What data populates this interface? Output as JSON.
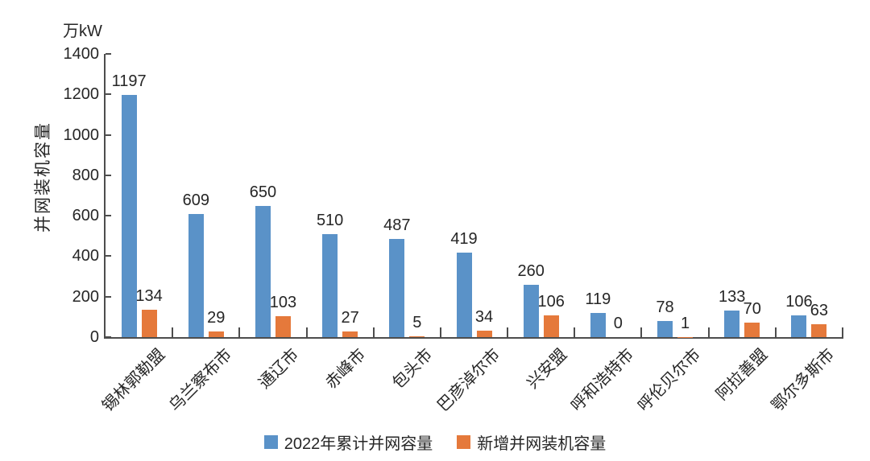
{
  "chart_data": {
    "type": "bar",
    "title": "",
    "unit_label": "万kW",
    "ylabel": "并网装机容量",
    "xlabel": "",
    "categories": [
      "锡林郭勒盟",
      "乌兰察布市",
      "通辽市",
      "赤峰市",
      "包头市",
      "巴彦淖尔市",
      "兴安盟",
      "呼和浩特市",
      "呼伦贝尔市",
      "阿拉善盟",
      "鄂尔多斯市"
    ],
    "series": [
      {
        "name": "2022年累计并网容量",
        "color": "#5A92C8",
        "values": [
          1197,
          609,
          650,
          510,
          487,
          419,
          260,
          119,
          78,
          133,
          106
        ]
      },
      {
        "name": "新增并网装机容量",
        "color": "#E5793B",
        "values": [
          134,
          29,
          103,
          27,
          5,
          34,
          106,
          0,
          1,
          70,
          63
        ]
      }
    ],
    "ylim": [
      0,
      1400
    ],
    "yticks": [
      0,
      200,
      400,
      600,
      800,
      1000,
      1200,
      1400
    ],
    "grid": false,
    "legend_position": "bottom",
    "value_labels_shown": true
  },
  "colors": {
    "axis": "#4d4d4d",
    "text": "#262626",
    "background": "#ffffff"
  }
}
